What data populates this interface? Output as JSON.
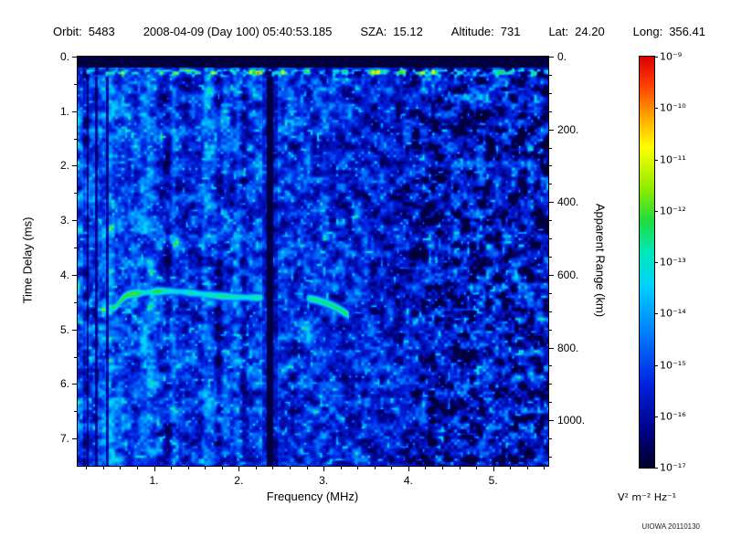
{
  "header": {
    "fields": [
      {
        "label": "Orbit:",
        "value": "5483"
      },
      {
        "label": "",
        "value": "2008-04-09 (Day 100) 05:40:53.185"
      },
      {
        "label": "SZA:",
        "value": "15.12"
      },
      {
        "label": "Altitude:",
        "value": "731"
      },
      {
        "label": "Lat:",
        "value": "24.20"
      },
      {
        "label": "Long:",
        "value": "356.41"
      }
    ]
  },
  "chart_data": {
    "type": "heatmap",
    "xlabel": "Frequency (MHz)",
    "ylabel_left": "Time Delay (ms)",
    "ylabel_right": "Apparent Range (km)",
    "x_range_mhz": [
      0.1,
      5.65
    ],
    "y_range_ms": [
      0.0,
      7.5
    ],
    "x_tick_labels": [
      "1.",
      "2.",
      "3.",
      "4.",
      "5."
    ],
    "x_tick_values": [
      1,
      2,
      3,
      4,
      5
    ],
    "y_tick_labels_left": [
      "0.",
      "1.",
      "2.",
      "3.",
      "4.",
      "5.",
      "6.",
      "7."
    ],
    "y_tick_values_left": [
      0,
      1,
      2,
      3,
      4,
      5,
      6,
      7
    ],
    "y_tick_labels_right": [
      "0.",
      "200.",
      "400.",
      "600.",
      "800.",
      "1000."
    ],
    "y_tick_values_right": [
      0,
      200,
      400,
      600,
      800,
      1000
    ],
    "km_per_ms": 150,
    "colorbar": {
      "scale": "log",
      "min": 1e-17,
      "max": 1e-09,
      "tick_labels": [
        "10⁻⁹",
        "10⁻¹⁰",
        "10⁻¹¹",
        "10⁻¹²",
        "10⁻¹³",
        "10⁻¹⁴",
        "10⁻¹⁵",
        "10⁻¹⁶",
        "10⁻¹⁷"
      ],
      "unit": "V² m⁻² Hz⁻¹"
    },
    "colormap_stops": [
      [
        0.0,
        "#000028"
      ],
      [
        0.08,
        "#000080"
      ],
      [
        0.2,
        "#0020E0"
      ],
      [
        0.33,
        "#0080FF"
      ],
      [
        0.44,
        "#00D0FF"
      ],
      [
        0.52,
        "#00E8C0"
      ],
      [
        0.6,
        "#20DC40"
      ],
      [
        0.68,
        "#90EC00"
      ],
      [
        0.78,
        "#FFFF00"
      ],
      [
        0.86,
        "#FFA000"
      ],
      [
        0.93,
        "#FF4000"
      ],
      [
        1.0,
        "#DC0000"
      ]
    ],
    "features": {
      "ionosphere_echo_trace": {
        "freq_start_mhz": 0.5,
        "freq_end_mhz": 3.3,
        "delay_ms_min": 4.3,
        "delay_ms_max": 4.75,
        "description": "bright green ionospheric echo trace near 4.3-4.7 ms"
      },
      "interference_null_mhz": 2.37,
      "quiet_band_top_ms": 0.2,
      "background": "blue noise speckle, brighter cyan below 2.5 MHz, darker with black patches above 4 MHz"
    }
  },
  "annotation": "UIOWA 20110130"
}
